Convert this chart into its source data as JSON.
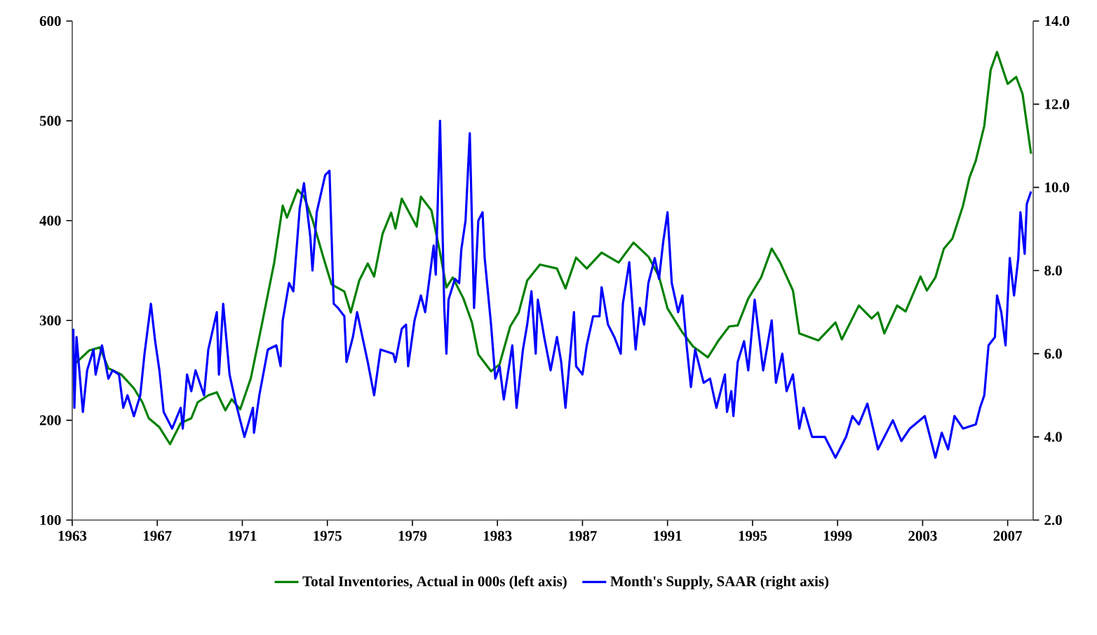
{
  "chart_data": {
    "type": "line",
    "xlim": [
      1963,
      2008.2
    ],
    "xticks": [
      1963,
      1967,
      1971,
      1975,
      1979,
      1983,
      1987,
      1991,
      1995,
      1999,
      2003,
      2007
    ],
    "ylim": [
      100,
      600
    ],
    "yticks": [
      100,
      200,
      300,
      400,
      500,
      600
    ],
    "y2lim": [
      2,
      14
    ],
    "y2ticks": [
      {
        "value": 2,
        "label": "2.0"
      },
      {
        "value": 4,
        "label": "4.0"
      },
      {
        "value": 6,
        "label": "6.0"
      },
      {
        "value": 8,
        "label": "8.0"
      },
      {
        "value": 10,
        "label": "10.0"
      },
      {
        "value": 12,
        "label": "12.0"
      },
      {
        "value": 14,
        "label": "14.0"
      }
    ],
    "legend": "bottom",
    "series": [
      {
        "name": "Total Inventories, Actual in 000s (left axis)",
        "color": "#008000",
        "axis": "y",
        "x": [
          1963.1,
          1963.8,
          1964.3,
          1964.7,
          1965.3,
          1965.9,
          1966.3,
          1966.6,
          1967.1,
          1967.6,
          1968.1,
          1968.6,
          1968.9,
          1969.4,
          1969.8,
          1970.2,
          1970.5,
          1970.9,
          1971.4,
          1971.9,
          1972.5,
          1972.9,
          1973.1,
          1973.6,
          1973.9,
          1974.3,
          1974.8,
          1975.2,
          1975.8,
          1976.1,
          1976.5,
          1976.9,
          1977.2,
          1977.6,
          1978.0,
          1978.2,
          1978.5,
          1979.2,
          1979.4,
          1979.9,
          1980.3,
          1980.6,
          1980.9,
          1981.4,
          1981.8,
          1982.1,
          1982.7,
          1983.1,
          1983.6,
          1984.0,
          1984.4,
          1985.0,
          1985.8,
          1986.2,
          1986.7,
          1987.2,
          1987.9,
          1988.7,
          1989.4,
          1990.1,
          1990.6,
          1991.0,
          1991.7,
          1992.2,
          1992.9,
          1993.4,
          1993.9,
          1994.3,
          1994.8,
          1995.4,
          1995.9,
          1996.3,
          1996.9,
          1997.2,
          1998.1,
          1998.9,
          1999.2,
          2000.0,
          2000.6,
          2000.9,
          2001.2,
          2001.8,
          2002.2,
          2002.9,
          2003.2,
          2003.6,
          2004.0,
          2004.4,
          2004.9,
          2005.2,
          2005.5,
          2005.9,
          2006.2,
          2006.5,
          2007.0,
          2007.4,
          2007.7,
          2008.1
        ],
        "values": [
          256,
          270,
          273,
          252,
          246,
          232,
          218,
          202,
          193,
          176,
          197,
          202,
          218,
          225,
          228,
          210,
          221,
          211,
          242,
          294,
          358,
          415,
          403,
          431,
          424,
          401,
          364,
          336,
          329,
          308,
          340,
          357,
          344,
          387,
          408,
          392,
          422,
          394,
          424,
          410,
          368,
          333,
          343,
          322,
          298,
          266,
          249,
          256,
          294,
          308,
          340,
          356,
          352,
          332,
          363,
          352,
          368,
          358,
          378,
          364,
          344,
          312,
          288,
          274,
          263,
          280,
          294,
          295,
          322,
          343,
          372,
          358,
          330,
          287,
          280,
          298,
          281,
          315,
          302,
          308,
          287,
          315,
          309,
          344,
          330,
          343,
          372,
          382,
          415,
          443,
          460,
          495,
          551,
          569,
          537,
          544,
          527,
          467
        ]
      },
      {
        "name": "Month's Supply, SAAR (right axis)",
        "color": "#0000ff",
        "axis": "y2",
        "x": [
          1963.05,
          1963.1,
          1963.2,
          1963.5,
          1963.7,
          1964.0,
          1964.1,
          1964.4,
          1964.7,
          1964.9,
          1965.2,
          1965.4,
          1965.6,
          1965.9,
          1966.2,
          1966.4,
          1966.7,
          1966.9,
          1967.1,
          1967.3,
          1967.7,
          1968.1,
          1968.2,
          1968.4,
          1968.6,
          1968.8,
          1969.2,
          1969.4,
          1969.8,
          1969.9,
          1970.1,
          1970.4,
          1970.7,
          1971.1,
          1971.5,
          1971.55,
          1971.8,
          1972.2,
          1972.6,
          1972.8,
          1972.9,
          1973.2,
          1973.4,
          1973.7,
          1973.9,
          1974.2,
          1974.3,
          1974.5,
          1974.9,
          1975.1,
          1975.3,
          1975.5,
          1975.8,
          1975.9,
          1976.2,
          1976.4,
          1976.9,
          1977.2,
          1977.5,
          1978.1,
          1978.2,
          1978.5,
          1978.7,
          1978.8,
          1979.1,
          1979.4,
          1979.6,
          1979.8,
          1980.0,
          1980.1,
          1980.3,
          1980.5,
          1980.6,
          1980.7,
          1981.0,
          1981.2,
          1981.3,
          1981.5,
          1981.7,
          1981.9,
          1982.1,
          1982.3,
          1982.4,
          1982.7,
          1982.9,
          1983.1,
          1983.3,
          1983.7,
          1983.9,
          1984.2,
          1984.4,
          1984.6,
          1984.8,
          1984.9,
          1985.2,
          1985.5,
          1985.8,
          1986.0,
          1986.2,
          1986.6,
          1986.7,
          1987.0,
          1987.2,
          1987.5,
          1987.8,
          1987.9,
          1988.2,
          1988.5,
          1988.8,
          1988.9,
          1989.2,
          1989.5,
          1989.7,
          1989.9,
          1990.1,
          1990.4,
          1990.6,
          1990.8,
          1991.0,
          1991.2,
          1991.5,
          1991.7,
          1991.9,
          1992.1,
          1992.3,
          1992.7,
          1993.0,
          1993.3,
          1993.7,
          1993.8,
          1994.0,
          1994.1,
          1994.3,
          1994.6,
          1994.8,
          1995.1,
          1995.5,
          1995.9,
          1996.1,
          1996.4,
          1996.6,
          1996.9,
          1997.2,
          1997.4,
          1997.8,
          1998.4,
          1998.9,
          1999.4,
          1999.7,
          2000.0,
          2000.4,
          2000.9,
          2001.6,
          2002.0,
          2002.4,
          2003.1,
          2003.6,
          2003.9,
          2004.2,
          2004.5,
          2004.9,
          2005.5,
          2005.7,
          2005.9,
          2006.1,
          2006.4,
          2006.5,
          2006.7,
          2006.9,
          2007.1,
          2007.3,
          2007.5,
          2007.6,
          2007.8,
          2007.9,
          2008.1
        ],
        "values": [
          6.6,
          4.7,
          6.4,
          4.6,
          5.6,
          6.1,
          5.5,
          6.2,
          5.4,
          5.6,
          5.5,
          4.7,
          5.0,
          4.5,
          5.0,
          6.0,
          7.2,
          6.3,
          5.6,
          4.6,
          4.2,
          4.7,
          4.2,
          5.5,
          5.1,
          5.6,
          5.0,
          6.1,
          7.0,
          5.5,
          7.2,
          5.5,
          4.8,
          4.0,
          4.7,
          4.1,
          5.0,
          6.1,
          6.2,
          5.7,
          6.8,
          7.7,
          7.5,
          9.5,
          10.1,
          8.8,
          8.0,
          9.4,
          10.3,
          10.4,
          7.2,
          7.1,
          6.9,
          5.8,
          6.4,
          7.0,
          5.8,
          5.0,
          6.1,
          6.0,
          5.8,
          6.6,
          6.7,
          5.7,
          6.8,
          7.4,
          7.0,
          7.8,
          8.6,
          7.9,
          11.6,
          7.1,
          6.0,
          7.3,
          7.8,
          7.7,
          8.5,
          9.2,
          11.3,
          7.1,
          9.2,
          9.4,
          8.3,
          6.7,
          5.4,
          5.7,
          4.9,
          6.2,
          4.7,
          6.1,
          6.7,
          7.5,
          6.0,
          7.3,
          6.4,
          5.6,
          6.4,
          5.8,
          4.7,
          7.0,
          5.7,
          5.5,
          6.2,
          6.9,
          6.9,
          7.6,
          6.7,
          6.4,
          6.0,
          7.2,
          8.2,
          6.1,
          7.1,
          6.7,
          7.7,
          8.3,
          7.8,
          8.7,
          9.4,
          7.7,
          7.0,
          7.4,
          6.2,
          5.2,
          6.1,
          5.3,
          5.4,
          4.7,
          5.5,
          4.6,
          5.1,
          4.5,
          5.8,
          6.3,
          5.6,
          7.3,
          5.6,
          6.8,
          5.3,
          6.0,
          5.1,
          5.5,
          4.2,
          4.7,
          4.0,
          4.0,
          3.5,
          4.0,
          4.5,
          4.3,
          4.8,
          3.7,
          4.4,
          3.9,
          4.2,
          4.5,
          3.5,
          4.1,
          3.7,
          4.5,
          4.2,
          4.3,
          4.7,
          5.0,
          6.2,
          6.4,
          7.4,
          7.0,
          6.2,
          8.3,
          7.4,
          8.3,
          9.4,
          8.4,
          9.6,
          9.9
        ]
      }
    ]
  }
}
